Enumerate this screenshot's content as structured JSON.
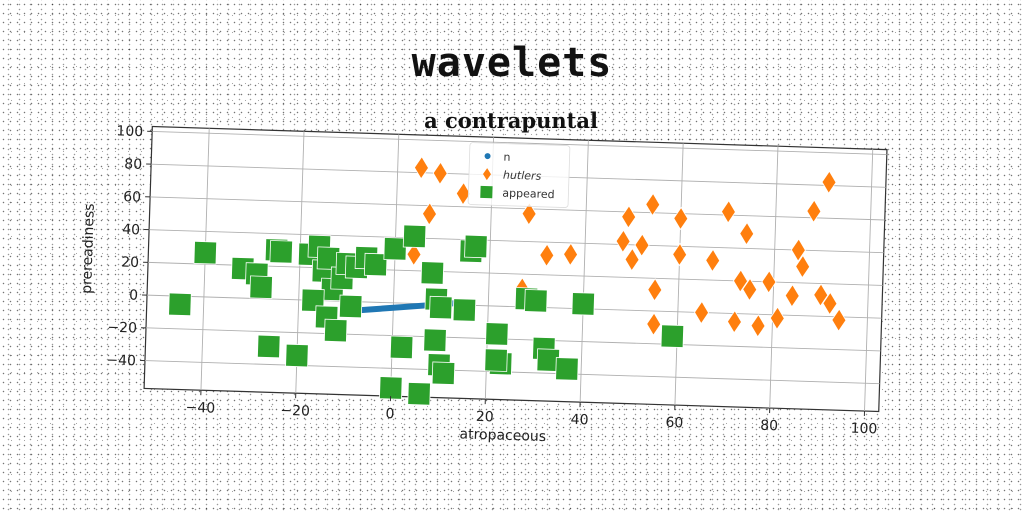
{
  "chart_data": {
    "type": "scatter",
    "title": "wavelets",
    "subtitle": "a contrapuntal",
    "xlabel": "atropaceous",
    "ylabel": "prereadiness",
    "xlim": [
      -52,
      103
    ],
    "ylim": [
      -57,
      103
    ],
    "xticks": [
      "−40",
      "−20",
      "0",
      "20",
      "40",
      "60",
      "80",
      "100"
    ],
    "xtick_values": [
      -40,
      -20,
      0,
      20,
      40,
      60,
      80,
      100
    ],
    "yticks": [
      "−40",
      "−20",
      "0",
      "20",
      "40",
      "60",
      "80",
      "100"
    ],
    "ytick_values": [
      -40,
      -20,
      0,
      20,
      40,
      60,
      80,
      100
    ],
    "grid": true,
    "legend_position": "top-center",
    "series": [
      {
        "name": "n",
        "marker": "line",
        "color": "#1f77b4",
        "x": [
          -10,
          -5,
          0,
          5,
          10,
          13
        ],
        "y": [
          -6,
          -4.5,
          -3,
          -1.5,
          0,
          1
        ]
      },
      {
        "name": "hutlers",
        "marker": "diamond",
        "color": "#ff7f0e",
        "x": [
          5,
          9,
          14,
          7,
          4,
          28,
          32,
          37,
          27,
          49,
          50,
          54,
          52,
          48,
          55,
          60,
          60,
          67,
          70,
          74,
          75,
          73,
          79,
          77,
          85,
          86,
          84,
          88,
          91,
          90,
          92,
          94,
          81,
          72,
          55,
          65
        ],
        "y": [
          83,
          80,
          68,
          55,
          30,
          57,
          32,
          33,
          11,
          57,
          31,
          65,
          40,
          42,
          13,
          57,
          35,
          32,
          62,
          49,
          15,
          20,
          20,
          -7,
          40,
          30,
          12,
          64,
          82,
          13,
          8,
          -2,
          -2,
          -5,
          -8,
          0
        ]
      },
      {
        "name": "appeared",
        "marker": "square",
        "color": "#2ca02c",
        "x": [
          -45,
          -40,
          -32,
          -29,
          -28,
          -25,
          -24,
          -18,
          -16,
          -15,
          -14,
          -13,
          -11,
          -10,
          -9,
          -8,
          -6,
          -4,
          0,
          4,
          8,
          9,
          10,
          15,
          16,
          17,
          -17,
          -14,
          -12,
          2,
          9,
          10,
          11,
          22,
          23,
          32,
          33,
          37,
          40,
          59,
          28,
          30,
          -20,
          -26,
          0,
          6,
          22
        ],
        "y": [
          -5,
          27,
          18,
          15,
          7,
          30,
          29,
          28,
          33,
          18,
          26,
          7,
          14,
          23,
          -3,
          21,
          27,
          23,
          33,
          41,
          19,
          3,
          -2,
          -3,
          33,
          36,
          0,
          -10,
          -18,
          -27,
          -22,
          -37,
          -42,
          -17,
          -35,
          -25,
          -32,
          -37,
          3,
          -15,
          5,
          4,
          -34,
          -29,
          -52,
          -55,
          -33
        ]
      }
    ]
  }
}
